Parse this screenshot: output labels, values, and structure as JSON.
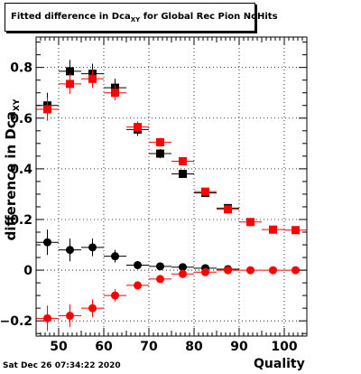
{
  "title": {
    "prefix": "Fitted difference in Dca",
    "subscript": "XY",
    "suffix": " for Global Rec Pion NoHits"
  },
  "timestamp": "Sat Dec 26 07:34:22 2020",
  "chart_data": {
    "type": "scatter",
    "xlabel": "Quality",
    "ylabel_main": "difference in Dca",
    "ylabel_sub": "XY",
    "xlim": [
      45,
      105
    ],
    "ylim": [
      -0.26,
      0.92
    ],
    "xticks": [
      50,
      60,
      70,
      80,
      90,
      100
    ],
    "yticks": [
      -0.2,
      0,
      0.2,
      0.4,
      0.6,
      0.8
    ],
    "grid": true,
    "bin_half_width": 2.5,
    "series": [
      {
        "marker": "square",
        "color": "#000000",
        "x": [
          47.5,
          52.5,
          57.5,
          62.5,
          67.5,
          72.5,
          77.5,
          82.5,
          87.5
        ],
        "y": [
          0.65,
          0.785,
          0.775,
          0.72,
          0.555,
          0.46,
          0.38,
          0.305,
          0.245
        ],
        "err": [
          0.05,
          0.045,
          0.04,
          0.035,
          0.025,
          0.018,
          0.012,
          0.008,
          0.006
        ]
      },
      {
        "marker": "square",
        "color": "#ff0000",
        "x": [
          47.5,
          52.5,
          57.5,
          62.5,
          67.5,
          72.5,
          77.5,
          82.5,
          87.5,
          92.5,
          97.5,
          102.5
        ],
        "y": [
          0.635,
          0.735,
          0.755,
          0.7,
          0.565,
          0.505,
          0.43,
          0.31,
          0.24,
          0.19,
          0.16,
          0.158
        ],
        "err": [
          0.045,
          0.04,
          0.035,
          0.03,
          0.022,
          0.016,
          0.011,
          0.007,
          0.005,
          0.004,
          0.003,
          0.003
        ]
      },
      {
        "marker": "circle",
        "color": "#000000",
        "x": [
          47.5,
          52.5,
          57.5,
          62.5,
          67.5,
          72.5,
          77.5,
          82.5,
          87.5
        ],
        "y": [
          0.11,
          0.08,
          0.09,
          0.055,
          0.02,
          0.015,
          0.012,
          0.008,
          0.004
        ],
        "err": [
          0.05,
          0.045,
          0.035,
          0.025,
          0.015,
          0.01,
          0.007,
          0.005,
          0.004
        ]
      },
      {
        "marker": "circle",
        "color": "#ff0000",
        "x": [
          47.5,
          52.5,
          57.5,
          62.5,
          67.5,
          72.5,
          77.5,
          82.5,
          87.5,
          92.5,
          97.5,
          102.5
        ],
        "y": [
          -0.19,
          -0.18,
          -0.15,
          -0.1,
          -0.06,
          -0.035,
          -0.015,
          -0.008,
          0.0,
          0.0,
          0.0,
          0.0
        ],
        "err": [
          0.05,
          0.045,
          0.035,
          0.025,
          0.016,
          0.01,
          0.007,
          0.005,
          0.004,
          0.003,
          0.003,
          0.003
        ]
      }
    ]
  }
}
